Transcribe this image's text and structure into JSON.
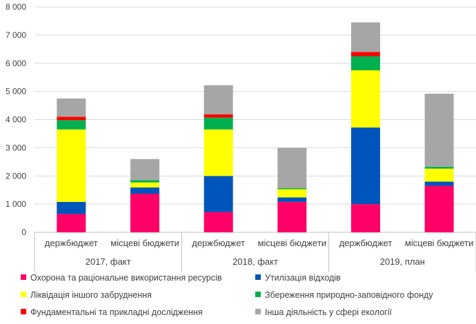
{
  "chart_data": {
    "type": "bar",
    "stacked": true,
    "title": "",
    "xlabel": "",
    "ylabel": "",
    "ylim": [
      0,
      8000
    ],
    "yticks": [
      0,
      1000,
      2000,
      3000,
      4000,
      5000,
      6000,
      7000,
      8000
    ],
    "ytick_labels": [
      "0",
      "1 000",
      "2 000",
      "3 000",
      "4 000",
      "5 000",
      "6 000",
      "7 000",
      "8 000"
    ],
    "grid": true,
    "legend_position": "bottom",
    "categories": [
      "держбюджет",
      "місцеві бюджети",
      "держбюджет",
      "місцеві бюджети",
      "держбюджет",
      "місцеві бюджети"
    ],
    "groups": [
      {
        "label": "2017,  факт",
        "categories": [
          0,
          1
        ]
      },
      {
        "label": "2018,  факт",
        "categories": [
          2,
          3
        ]
      },
      {
        "label": "2019,  план",
        "categories": [
          4,
          5
        ]
      }
    ],
    "series": [
      {
        "name": "Охорона та раціональне використання ресурсів",
        "color": "#ff0066",
        "values": [
          650,
          1370,
          720,
          1080,
          1000,
          1650
        ]
      },
      {
        "name": "Утилізація відходів",
        "color": "#0055bb",
        "values": [
          430,
          220,
          1280,
          160,
          2720,
          150
        ]
      },
      {
        "name": "Ліквідація іншого забруднення",
        "color": "#ffff00",
        "values": [
          2570,
          180,
          1650,
          290,
          2030,
          460
        ]
      },
      {
        "name": "Збереження природно-заповідного фонду",
        "color": "#00b050",
        "values": [
          330,
          80,
          420,
          40,
          500,
          70
        ]
      },
      {
        "name": "Фундаментальні та прикладні дослідження",
        "color": "#ff0000",
        "values": [
          120,
          0,
          120,
          0,
          150,
          0
        ]
      },
      {
        "name": "Інша діяльність у сфері екології",
        "color": "#a6a6a6",
        "values": [
          650,
          750,
          1030,
          1430,
          1050,
          2590
        ]
      }
    ]
  }
}
